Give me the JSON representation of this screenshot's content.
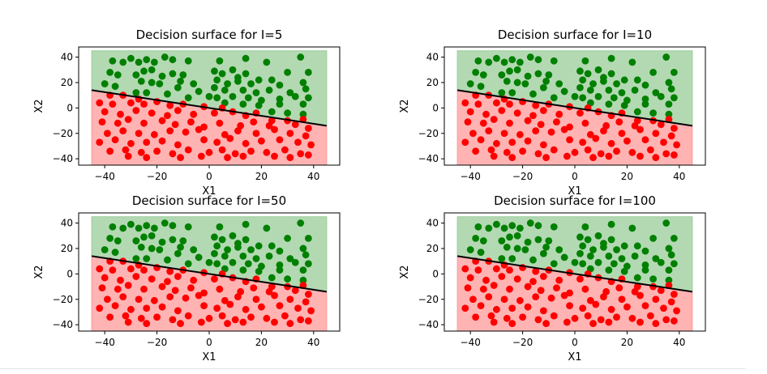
{
  "chart_data": [
    {
      "type": "scatter",
      "title": "Decision surface for I=5",
      "xlabel": "X1",
      "ylabel": "X2",
      "xlim": [
        -50,
        50
      ],
      "ylim": [
        -45,
        48
      ],
      "xticks": [
        -40,
        -20,
        0,
        20,
        40
      ],
      "yticks": [
        -40,
        -20,
        0,
        20,
        40
      ],
      "boundary": {
        "x": [
          -45,
          45
        ],
        "y": [
          14,
          -14
        ]
      },
      "regions": {
        "x": [
          -45,
          45
        ],
        "y": [
          -45,
          45
        ]
      }
    },
    {
      "type": "scatter",
      "title": "Decision surface for I=10",
      "xlabel": "X1",
      "ylabel": "X2",
      "xlim": [
        -50,
        50
      ],
      "ylim": [
        -45,
        48
      ],
      "xticks": [
        -40,
        -20,
        0,
        20,
        40
      ],
      "yticks": [
        -40,
        -20,
        0,
        20,
        40
      ],
      "boundary": {
        "x": [
          -45,
          45
        ],
        "y": [
          14,
          -14
        ]
      },
      "regions": {
        "x": [
          -45,
          45
        ],
        "y": [
          -45,
          45
        ]
      }
    },
    {
      "type": "scatter",
      "title": "Decision surface for I=50",
      "xlabel": "X1",
      "ylabel": "X2",
      "xlim": [
        -50,
        50
      ],
      "ylim": [
        -45,
        48
      ],
      "xticks": [
        -40,
        -20,
        0,
        20,
        40
      ],
      "yticks": [
        -40,
        -20,
        0,
        20,
        40
      ],
      "boundary": {
        "x": [
          -45,
          45
        ],
        "y": [
          14,
          -14
        ]
      },
      "regions": {
        "x": [
          -45,
          45
        ],
        "y": [
          -45,
          45
        ]
      }
    },
    {
      "type": "scatter",
      "title": "Decision surface for I=100",
      "xlabel": "X1",
      "ylabel": "X2",
      "xlim": [
        -50,
        50
      ],
      "ylim": [
        -45,
        48
      ],
      "xticks": [
        -40,
        -20,
        0,
        20,
        40
      ],
      "yticks": [
        -40,
        -20,
        0,
        20,
        40
      ],
      "boundary": {
        "x": [
          -45,
          45
        ],
        "y": [
          14,
          -14
        ]
      },
      "regions": {
        "x": [
          -45,
          45
        ],
        "y": [
          -45,
          45
        ]
      }
    }
  ],
  "points": {
    "green": [
      [
        -37,
        37
      ],
      [
        -33,
        36
      ],
      [
        -30,
        39
      ],
      [
        -27,
        36
      ],
      [
        -24,
        38
      ],
      [
        -21,
        36
      ],
      [
        -17,
        40
      ],
      [
        -14,
        38
      ],
      [
        -8,
        37
      ],
      [
        4,
        37
      ],
      [
        14,
        39
      ],
      [
        22,
        36
      ],
      [
        35,
        40
      ],
      [
        -38,
        28
      ],
      [
        -35,
        26
      ],
      [
        -28,
        26
      ],
      [
        -25,
        29
      ],
      [
        -22,
        30
      ],
      [
        -18,
        25
      ],
      [
        -14,
        27
      ],
      [
        -10,
        26
      ],
      [
        2,
        29
      ],
      [
        5,
        27
      ],
      [
        9,
        30
      ],
      [
        11,
        24
      ],
      [
        14,
        27
      ],
      [
        19,
        22
      ],
      [
        30,
        28
      ],
      [
        38,
        28
      ],
      [
        -40,
        19
      ],
      [
        -36,
        17
      ],
      [
        -26,
        21
      ],
      [
        -22,
        20
      ],
      [
        -19,
        19
      ],
      [
        -11,
        21
      ],
      [
        -6,
        19
      ],
      [
        3,
        22
      ],
      [
        7,
        19
      ],
      [
        11,
        21
      ],
      [
        16,
        19
      ],
      [
        24,
        22
      ],
      [
        27,
        18
      ],
      [
        36,
        20
      ],
      [
        -28,
        12
      ],
      [
        -24,
        12
      ],
      [
        -16,
        11
      ],
      [
        -12,
        16
      ],
      [
        -4,
        13
      ],
      [
        2,
        16
      ],
      [
        6,
        14
      ],
      [
        13,
        14
      ],
      [
        18,
        12
      ],
      [
        23,
        14
      ],
      [
        31,
        12
      ],
      [
        37,
        15
      ],
      [
        -8,
        8
      ],
      [
        0,
        9
      ],
      [
        3,
        8
      ],
      [
        9,
        9
      ],
      [
        15,
        8
      ],
      [
        20,
        6
      ],
      [
        27,
        7
      ],
      [
        33,
        9
      ],
      [
        38,
        8
      ],
      [
        6,
        4
      ],
      [
        13,
        3
      ],
      [
        19,
        2
      ],
      [
        27,
        3
      ],
      [
        36,
        3
      ],
      [
        24,
        -3
      ],
      [
        30,
        -4
      ],
      [
        36,
        -5
      ]
    ],
    "red": [
      [
        -38,
        10
      ],
      [
        -33,
        10
      ],
      [
        -27,
        7
      ],
      [
        -42,
        4
      ],
      [
        -37,
        3
      ],
      [
        -30,
        4
      ],
      [
        -25,
        3
      ],
      [
        -20,
        5
      ],
      [
        -15,
        2
      ],
      [
        -10,
        3
      ],
      [
        -2,
        1
      ],
      [
        5,
        0
      ],
      [
        -40,
        -3
      ],
      [
        -34,
        -5
      ],
      [
        -28,
        -2
      ],
      [
        -22,
        -4
      ],
      [
        -16,
        -6
      ],
      [
        -12,
        -2
      ],
      [
        -6,
        -5
      ],
      [
        2,
        -4
      ],
      [
        9,
        -3
      ],
      [
        14,
        -6
      ],
      [
        18,
        -4
      ],
      [
        24,
        -10
      ],
      [
        30,
        -10
      ],
      [
        36,
        -9
      ],
      [
        -41,
        -11
      ],
      [
        -35,
        -12
      ],
      [
        -31,
        -9
      ],
      [
        -25,
        -12
      ],
      [
        -18,
        -10
      ],
      [
        -13,
        -13
      ],
      [
        -7,
        -11
      ],
      [
        -2,
        -15
      ],
      [
        4,
        -12
      ],
      [
        12,
        -14
      ],
      [
        17,
        -11
      ],
      [
        23,
        -14
      ],
      [
        33,
        -13
      ],
      [
        38,
        -16
      ],
      [
        -39,
        -20
      ],
      [
        -33,
        -18
      ],
      [
        -27,
        -20
      ],
      [
        -21,
        -21
      ],
      [
        -15,
        -18
      ],
      [
        -9,
        -19
      ],
      [
        -4,
        -17
      ],
      [
        6,
        -21
      ],
      [
        11,
        -18
      ],
      [
        18,
        -20
      ],
      [
        25,
        -17
      ],
      [
        31,
        -20
      ],
      [
        37,
        -22
      ],
      [
        -42,
        -27
      ],
      [
        -36,
        -25
      ],
      [
        -30,
        -28
      ],
      [
        -24,
        -27
      ],
      [
        -18,
        -26
      ],
      [
        -12,
        -29
      ],
      [
        -2,
        -25
      ],
      [
        3,
        -27
      ],
      [
        8,
        -24
      ],
      [
        14,
        -28
      ],
      [
        20,
        -26
      ],
      [
        27,
        -25
      ],
      [
        34,
        -27
      ],
      [
        39,
        -29
      ],
      [
        -38,
        -34
      ],
      [
        -32,
        -33
      ],
      [
        -26,
        -35
      ],
      [
        -20,
        -34
      ],
      [
        -14,
        -36
      ],
      [
        -8,
        -33
      ],
      [
        0,
        -35
      ],
      [
        5,
        -33
      ],
      [
        10,
        -36
      ],
      [
        16,
        -34
      ],
      [
        22,
        -35
      ],
      [
        29,
        -33
      ],
      [
        35,
        -36
      ],
      [
        -31,
        -38
      ],
      [
        -24,
        -39
      ],
      [
        -11,
        -39
      ],
      [
        -3,
        -38
      ],
      [
        7,
        -39
      ],
      [
        13,
        -38
      ],
      [
        25,
        -38
      ],
      [
        31,
        -39
      ],
      [
        38,
        -37
      ]
    ]
  },
  "colors": {
    "green_point": "#008000",
    "red_point": "#ff0000",
    "green_region": "#b3d9b3",
    "red_region": "#ffb3b3",
    "boundary": "#000000"
  }
}
